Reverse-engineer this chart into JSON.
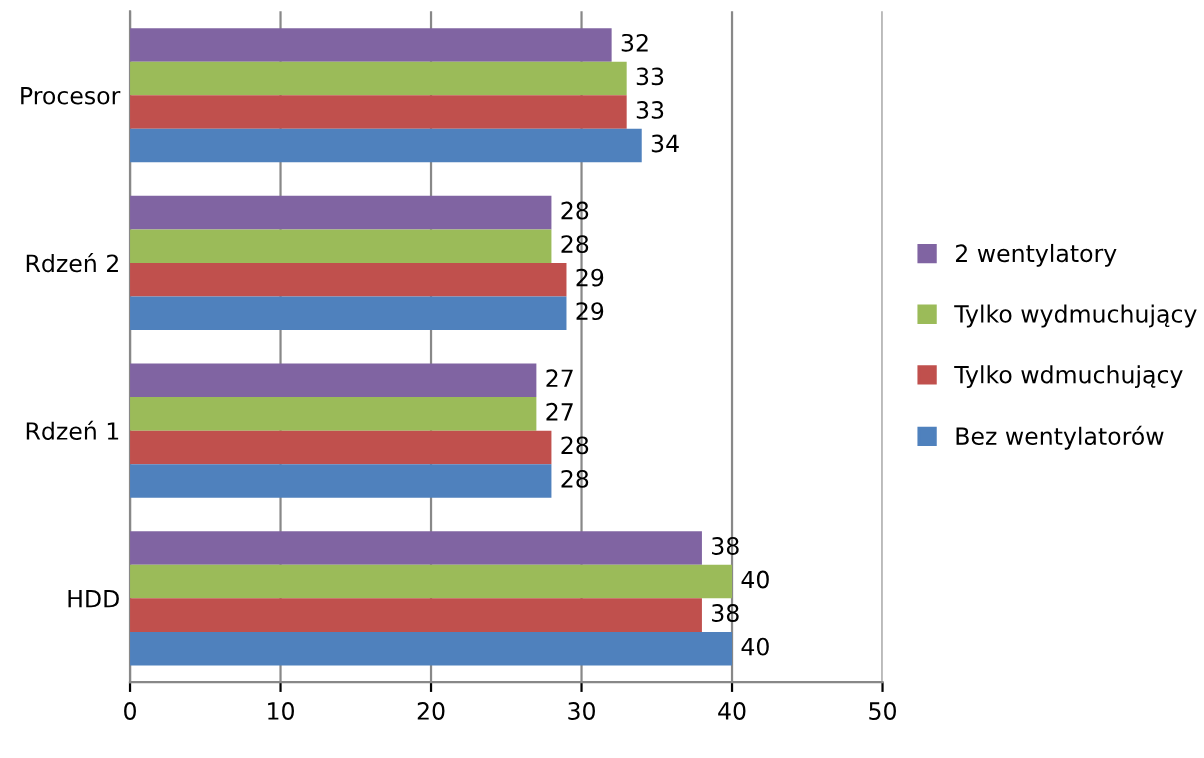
{
  "chart_data": {
    "type": "bar",
    "orientation": "horizontal",
    "categories": [
      "Procesor",
      "Rdzeń 2",
      "Rdzeń 1",
      "HDD"
    ],
    "series": [
      {
        "name": "2 wentylatory",
        "color": "#8064a2",
        "values": [
          32,
          28,
          27,
          38
        ]
      },
      {
        "name": "Tylko wydmuchujący",
        "color": "#9bbb59",
        "values": [
          33,
          28,
          27,
          40
        ]
      },
      {
        "name": "Tylko wdmuchujący",
        "color": "#c0504d",
        "values": [
          33,
          29,
          28,
          38
        ]
      },
      {
        "name": "Bez wentylatorów",
        "color": "#4f81bd",
        "values": [
          34,
          29,
          28,
          40
        ]
      }
    ],
    "xlim": [
      0,
      50
    ],
    "xticks": [
      0,
      10,
      20,
      30,
      40,
      50
    ],
    "grid": "x",
    "legend": "right",
    "data_labels": true
  }
}
